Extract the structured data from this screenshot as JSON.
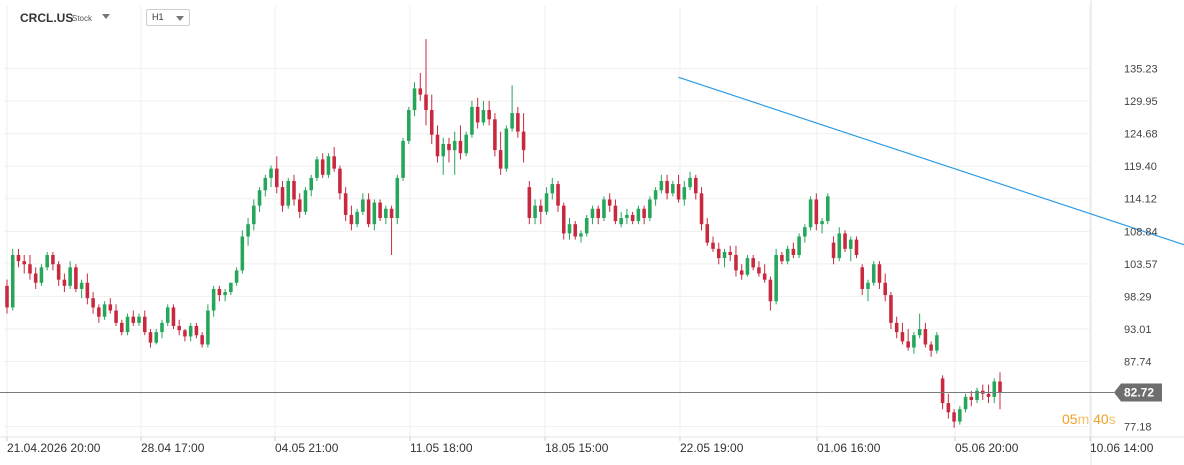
{
  "header": {
    "symbol": "CRCL.US",
    "asset_type": "Stock",
    "timeframe": "H1"
  },
  "countdown": {
    "minutes": "05",
    "m": "m",
    "seconds": "40",
    "s": "s"
  },
  "colors": {
    "up": "#26a65b",
    "down": "#c8293f",
    "trendline": "#2e9be6",
    "price_line": "#7a7a7a",
    "price_tag": "#6e6e6e"
  },
  "chart_data": {
    "type": "candlestick",
    "ylim": [
      75.5,
      140.5
    ],
    "y_ticks": [
      "135.23",
      "129.95",
      "124.68",
      "119.40",
      "114.12",
      "108.84",
      "103.57",
      "98.29",
      "93.01",
      "87.74",
      "77.18"
    ],
    "x_ticks": [
      "21.04.2026 20:00",
      "28.04 17:00",
      "04.05 21:00",
      "11.05 18:00",
      "18.05 15:00",
      "22.05 19:00",
      "01.06 16:00",
      "05.06 20:00",
      "10.06 14:00"
    ],
    "current_price": "82.72",
    "grid": true,
    "trendline": {
      "from": {
        "x": 117,
        "y": 133.8
      },
      "to": {
        "x": 277,
        "y": 84.5
      }
    },
    "ohlc": [
      [
        100,
        101,
        95.5,
        96.5
      ],
      [
        96.5,
        106,
        96,
        105
      ],
      [
        105,
        106,
        103,
        104
      ],
      [
        104,
        105,
        102,
        103.5
      ],
      [
        103.5,
        105,
        101,
        102
      ],
      [
        102,
        103,
        99.5,
        100.5
      ],
      [
        100.5,
        103.5,
        100,
        103
      ],
      [
        103,
        105.5,
        102.5,
        105
      ],
      [
        105,
        105.5,
        102.5,
        103.5
      ],
      [
        103.5,
        104,
        100,
        101
      ],
      [
        101,
        102,
        99,
        100
      ],
      [
        100,
        104,
        99.5,
        103
      ],
      [
        103,
        103.5,
        99,
        99.5
      ],
      [
        99.5,
        101,
        98,
        100.5
      ],
      [
        100.5,
        102,
        97,
        98
      ],
      [
        98,
        99,
        95.5,
        96.5
      ],
      [
        96.5,
        97,
        94,
        95
      ],
      [
        95,
        97.5,
        94.5,
        97
      ],
      [
        97,
        98,
        95.5,
        96
      ],
      [
        96,
        97,
        93.5,
        94
      ],
      [
        94,
        94.5,
        92,
        92.5
      ],
      [
        92.5,
        95.5,
        92,
        95
      ],
      [
        95,
        96,
        93.5,
        94
      ],
      [
        94,
        95.5,
        93.5,
        95
      ],
      [
        95,
        96,
        92,
        92.5
      ],
      [
        92.5,
        93,
        90,
        90.8
      ],
      [
        90.8,
        93,
        90.5,
        92.5
      ],
      [
        92.5,
        94.5,
        91.5,
        94
      ],
      [
        94,
        97,
        93.5,
        96.5
      ],
      [
        96.5,
        97,
        93,
        93.5
      ],
      [
        93.5,
        94.5,
        92,
        92.8
      ],
      [
        92.8,
        93,
        91,
        91.8
      ],
      [
        91.8,
        94,
        91,
        93.5
      ],
      [
        93.5,
        94,
        91.5,
        92
      ],
      [
        92,
        92.5,
        90,
        90.5
      ],
      [
        90.5,
        97,
        90,
        96
      ],
      [
        96,
        100,
        95,
        99.5
      ],
      [
        99.5,
        100,
        97.5,
        98.5
      ],
      [
        98.5,
        99.5,
        97.5,
        99
      ],
      [
        99,
        100.5,
        98.5,
        100.5
      ],
      [
        100.5,
        103,
        100,
        102.5
      ],
      [
        102.5,
        109,
        102,
        108
      ],
      [
        108,
        111,
        106.5,
        110
      ],
      [
        110,
        114,
        109,
        113
      ],
      [
        113,
        116,
        112,
        115.5
      ],
      [
        115.5,
        118,
        114.5,
        117.5
      ],
      [
        117.5,
        119.5,
        116,
        119
      ],
      [
        119,
        121,
        115,
        116
      ],
      [
        116,
        117,
        112,
        113
      ],
      [
        113,
        117.5,
        112.5,
        117
      ],
      [
        117,
        118,
        113,
        114
      ],
      [
        114,
        115,
        111,
        112
      ],
      [
        112,
        116,
        111.5,
        115.5
      ],
      [
        115.5,
        118,
        114.5,
        117.5
      ],
      [
        117.5,
        121,
        117,
        120.5
      ],
      [
        120.5,
        121.5,
        117.5,
        118
      ],
      [
        118,
        121.5,
        117.5,
        121
      ],
      [
        121,
        122.5,
        118.5,
        119
      ],
      [
        119,
        119.5,
        114,
        115
      ],
      [
        115,
        116,
        110.5,
        111.5
      ],
      [
        111.5,
        113,
        109,
        110
      ],
      [
        110,
        112.5,
        109.5,
        112
      ],
      [
        112,
        115,
        111.5,
        114
      ],
      [
        114,
        115,
        109.5,
        110
      ],
      [
        110,
        114,
        109,
        113.5
      ],
      [
        113.5,
        114,
        110.5,
        111
      ],
      [
        111,
        113,
        110,
        112.5
      ],
      [
        112.5,
        113,
        105,
        111
      ],
      [
        111,
        118,
        110,
        117.5
      ],
      [
        117.5,
        124,
        117,
        123.5
      ],
      [
        123.5,
        129,
        123,
        128.5
      ],
      [
        128.5,
        133,
        127.5,
        132
      ],
      [
        132,
        134.5,
        130,
        131
      ],
      [
        131,
        140,
        126,
        128.5
      ],
      [
        128.5,
        131,
        123,
        124.5
      ],
      [
        124.5,
        126,
        120,
        121
      ],
      [
        121,
        124,
        118,
        123
      ],
      [
        123,
        124,
        120,
        122
      ],
      [
        122,
        125,
        118,
        123.5
      ],
      [
        123.5,
        126,
        120.5,
        121.5
      ],
      [
        121.5,
        125,
        121,
        124.5
      ],
      [
        124.5,
        130,
        124,
        129
      ],
      [
        129,
        130.5,
        125.5,
        126.5
      ],
      [
        126.5,
        130,
        126,
        128.5
      ],
      [
        128.5,
        130,
        126,
        127
      ],
      [
        127,
        128,
        121,
        122
      ],
      [
        122,
        125,
        118,
        119
      ],
      [
        119,
        126,
        118.5,
        125.5
      ],
      [
        125.5,
        132.5,
        125,
        128
      ],
      [
        128,
        129,
        124,
        125
      ],
      [
        125,
        128,
        120,
        122
      ],
      [
        116,
        117,
        110,
        111
      ],
      [
        111,
        114,
        110,
        113
      ],
      [
        113,
        114,
        110,
        112
      ],
      [
        112,
        116,
        111.5,
        115
      ],
      [
        115,
        117.5,
        114,
        116.5
      ],
      [
        116.5,
        117,
        112,
        113
      ],
      [
        113,
        113.5,
        107.5,
        108.5
      ],
      [
        108.5,
        111,
        107.5,
        110
      ],
      [
        110,
        110.5,
        107.5,
        108
      ],
      [
        108,
        109,
        107,
        108.5
      ],
      [
        108.5,
        111.5,
        108,
        111
      ],
      [
        111,
        113,
        110,
        112.5
      ],
      [
        112.5,
        113,
        110,
        111
      ],
      [
        111,
        114.5,
        110.5,
        114
      ],
      [
        114,
        115,
        112,
        113
      ],
      [
        113,
        114,
        110,
        110.5
      ],
      [
        110,
        112,
        109.5,
        111
      ],
      [
        111,
        112.5,
        110,
        111.5
      ],
      [
        111.5,
        112,
        110,
        110.5
      ],
      [
        110.5,
        113,
        110,
        112.5
      ],
      [
        112.5,
        113,
        110,
        111
      ],
      [
        111,
        114.5,
        110.5,
        114
      ],
      [
        114,
        116,
        113,
        115.5
      ],
      [
        115.5,
        118,
        115,
        117
      ],
      [
        117,
        118,
        114,
        115
      ],
      [
        115,
        117,
        114.5,
        116.5
      ],
      [
        116.5,
        118,
        113.5,
        114
      ],
      [
        114,
        117,
        113,
        116
      ],
      [
        116,
        118.5,
        115.5,
        117.5
      ],
      [
        117.5,
        118,
        114,
        115
      ],
      [
        115,
        116,
        109,
        110
      ],
      [
        110,
        111,
        106.5,
        107
      ],
      [
        107,
        108,
        105.5,
        106
      ],
      [
        106,
        107,
        103.5,
        104.5
      ],
      [
        104.5,
        106,
        103,
        105.5
      ],
      [
        105.5,
        106.5,
        104,
        105
      ],
      [
        105,
        106.5,
        101.5,
        102.5
      ],
      [
        102.5,
        103.5,
        101,
        101.8
      ],
      [
        101.8,
        105,
        101.5,
        104.5
      ],
      [
        104.5,
        105,
        102.5,
        103
      ],
      [
        103,
        104,
        101.5,
        102
      ],
      [
        102,
        103.5,
        100.5,
        101
      ],
      [
        101,
        101.5,
        96,
        97.5
      ],
      [
        97.5,
        106,
        97,
        105
      ],
      [
        105,
        105.5,
        103.5,
        104
      ],
      [
        104,
        106.5,
        103.5,
        106
      ],
      [
        106,
        107,
        104.5,
        105
      ],
      [
        105,
        108.5,
        104.5,
        108
      ],
      [
        108,
        110,
        107,
        109.5
      ],
      [
        109.5,
        114.5,
        109,
        114
      ],
      [
        114,
        115,
        109,
        110
      ],
      [
        110,
        111,
        108.5,
        110.5
      ],
      [
        110.5,
        115,
        110,
        114.5
      ],
      [
        107,
        108,
        103.5,
        104.5
      ],
      [
        104.5,
        109.5,
        104,
        108.5
      ],
      [
        108.5,
        109,
        105.5,
        106
      ],
      [
        106,
        108,
        104,
        107.5
      ],
      [
        107.5,
        108,
        104.5,
        105
      ],
      [
        103,
        103.5,
        98.5,
        99.5
      ],
      [
        99.5,
        101,
        97.5,
        100.5
      ],
      [
        100.5,
        104,
        100,
        103.5
      ],
      [
        103.5,
        104,
        99.5,
        100.5
      ],
      [
        100.5,
        102,
        97.5,
        98.5
      ],
      [
        98.5,
        99,
        93,
        94
      ],
      [
        94,
        95,
        91.5,
        92.5
      ],
      [
        92.5,
        94,
        90.5,
        91
      ],
      [
        91,
        93,
        89.5,
        90
      ],
      [
        90,
        92.5,
        89,
        92
      ],
      [
        92,
        95.5,
        91.5,
        93
      ],
      [
        93,
        94,
        90,
        90.5
      ],
      [
        90.5,
        91,
        88.5,
        89.5
      ],
      [
        89.5,
        92.5,
        89,
        92
      ],
      [
        85,
        85.5,
        80,
        81
      ],
      [
        81,
        82.5,
        78.5,
        79.5
      ],
      [
        79.5,
        80,
        77,
        78
      ],
      [
        78,
        80.5,
        77.5,
        80
      ],
      [
        80,
        82.5,
        79.5,
        82
      ],
      [
        82,
        83,
        80.5,
        81.5
      ],
      [
        81.5,
        83.5,
        81,
        83
      ],
      [
        83,
        84,
        81.5,
        82.5
      ],
      [
        82.5,
        84,
        81,
        82
      ],
      [
        82,
        85,
        81,
        84.5
      ],
      [
        84.5,
        86,
        80,
        82.72
      ]
    ]
  }
}
